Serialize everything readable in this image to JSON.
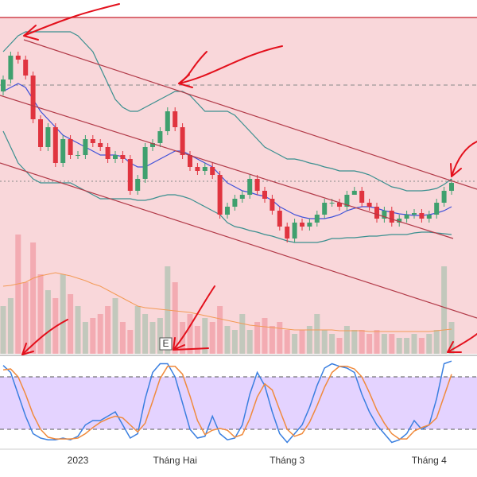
{
  "chart_data": [
    {
      "type": "candlestick",
      "categories": [
        null,
        null,
        null,
        null,
        null,
        null,
        null,
        null,
        null,
        null,
        "2023",
        null,
        null,
        null,
        null,
        null,
        null,
        null,
        null,
        null,
        null,
        null,
        null,
        "Tháng Hai",
        null,
        null,
        null,
        null,
        null,
        null,
        null,
        null,
        null,
        null,
        null,
        null,
        null,
        null,
        "Tháng 3",
        null,
        null,
        null,
        null,
        null,
        null,
        null,
        null,
        null,
        null,
        null,
        null,
        null,
        null,
        null,
        null,
        null,
        null,
        "Tháng 4",
        null,
        null,
        null
      ],
      "open": [
        33.0,
        34.5,
        37.5,
        37.0,
        35.0,
        29.5,
        26.0,
        28.5,
        24.0,
        27.0,
        25.0,
        25.0,
        27.0,
        26.5,
        26.0,
        24.5,
        25.0,
        24.5,
        20.5,
        22.0,
        26.0,
        26.5,
        28.0,
        30.5,
        28.5,
        25.0,
        23.5,
        23.0,
        23.5,
        22.5,
        17.5,
        18.5,
        19.5,
        20.0,
        22.0,
        20.5,
        19.5,
        18.0,
        16.0,
        14.5,
        16.5,
        16.0,
        16.5,
        17.5,
        19.0,
        19.0,
        18.5,
        20.0,
        20.5,
        19.0,
        18.5,
        17.0,
        18.0,
        16.5,
        17.0,
        17.5,
        17.7,
        17.0,
        17.5,
        19.0,
        20.5
      ],
      "high": [
        35.0,
        38.0,
        38.0,
        37.5,
        35.5,
        30.0,
        29.0,
        29.0,
        27.5,
        27.5,
        25.5,
        27.5,
        27.5,
        27.0,
        26.5,
        25.5,
        25.5,
        25.0,
        22.5,
        26.5,
        27.0,
        28.5,
        31.0,
        31.0,
        29.0,
        25.5,
        24.0,
        24.0,
        24.0,
        23.0,
        19.0,
        20.0,
        20.5,
        22.5,
        22.5,
        21.0,
        20.0,
        18.5,
        16.5,
        17.0,
        17.0,
        17.0,
        18.0,
        19.5,
        19.5,
        19.5,
        20.5,
        21.0,
        21.0,
        19.5,
        19.0,
        18.5,
        18.5,
        17.5,
        18.0,
        18.2,
        18.2,
        18.0,
        19.5,
        21.0,
        22.0
      ],
      "low": [
        32.5,
        34.0,
        36.5,
        34.5,
        29.0,
        25.5,
        25.5,
        23.5,
        23.5,
        24.5,
        24.5,
        24.5,
        26.0,
        25.5,
        24.0,
        24.0,
        24.0,
        20.0,
        20.0,
        21.5,
        25.5,
        26.0,
        27.5,
        28.0,
        24.5,
        23.0,
        22.5,
        22.5,
        22.0,
        17.0,
        17.0,
        18.0,
        19.0,
        19.5,
        20.0,
        19.0,
        17.5,
        15.5,
        14.0,
        14.0,
        15.5,
        15.5,
        16.0,
        17.0,
        18.5,
        18.0,
        18.0,
        20.0,
        18.5,
        18.0,
        16.5,
        16.5,
        16.0,
        16.0,
        16.5,
        17.0,
        16.5,
        16.5,
        17.0,
        18.5,
        20.0
      ],
      "close": [
        34.5,
        37.5,
        37.0,
        35.0,
        29.5,
        26.0,
        28.5,
        24.0,
        27.0,
        25.0,
        25.0,
        27.0,
        26.5,
        26.0,
        24.5,
        25.0,
        24.5,
        20.5,
        22.0,
        26.0,
        26.5,
        28.0,
        30.5,
        28.5,
        25.0,
        23.5,
        23.0,
        23.5,
        22.5,
        17.5,
        18.5,
        19.5,
        20.0,
        22.0,
        20.5,
        19.5,
        18.0,
        16.0,
        14.5,
        16.5,
        16.0,
        16.5,
        17.5,
        19.0,
        19.0,
        18.5,
        20.0,
        20.5,
        19.0,
        18.5,
        17.0,
        18.0,
        16.5,
        17.0,
        17.5,
        17.7,
        17.0,
        17.5,
        19.0,
        20.5,
        21.5
      ],
      "up_color": "#3fa06e",
      "down_color": "#e0343f",
      "ylim": [
        0,
        44.5
      ],
      "series": [
        {
          "color": "#3a8f8f",
          "values": [
            38,
            39,
            40,
            40.5,
            40.5,
            40.5,
            40.5,
            40.5,
            40.5,
            40.5,
            40,
            39,
            38,
            36,
            34,
            32,
            31,
            30.5,
            30.5,
            31,
            31.5,
            32,
            32.5,
            33,
            33,
            32.5,
            31.5,
            30.5,
            30.5,
            30.5,
            30.5,
            30,
            29,
            28,
            27,
            26,
            25.5,
            25,
            24.5,
            24.5,
            24.3,
            24,
            23.8,
            23.5,
            23.3,
            23,
            23,
            23,
            22.8,
            22.5,
            22,
            21.5,
            21,
            20.8,
            20.5,
            20.5,
            20.5,
            20.6,
            20.8,
            21.3,
            22
          ]
        },
        {
          "color": "#3a8f8f",
          "values": [
            28,
            26,
            24,
            23,
            22,
            21.5,
            21.5,
            21.5,
            21.5,
            21.5,
            21,
            20.5,
            20,
            19.5,
            19.5,
            19.5,
            19.5,
            19.5,
            19.3,
            19.3,
            19.5,
            19.8,
            20,
            20,
            19.8,
            19.5,
            19,
            18.5,
            18,
            17.5,
            16.5,
            16,
            15.8,
            15.5,
            15.3,
            15,
            14.8,
            14.5,
            14.2,
            14,
            14,
            14,
            14,
            14.2,
            14.5,
            14.5,
            14.6,
            14.6,
            14.7,
            14.8,
            14.8,
            14.9,
            15,
            15,
            15,
            15.2,
            15.3,
            15.3,
            15.2,
            15.1,
            15
          ]
        },
        {
          "color": "#3f51d9",
          "values": [
            33,
            33.5,
            34,
            33.5,
            32,
            30.5,
            29.5,
            28.5,
            27.5,
            27,
            26.5,
            26,
            25.5,
            25,
            25,
            25,
            24.8,
            24,
            23.5,
            23.5,
            24,
            24.5,
            25,
            25.5,
            25.5,
            25,
            24.5,
            24,
            23.5,
            22.5,
            21.5,
            21,
            20.5,
            20.3,
            20,
            19.8,
            19.3,
            18.5,
            18,
            17.5,
            17.2,
            17,
            17,
            17,
            17.2,
            17.5,
            18,
            18.3,
            18.5,
            18.5,
            18.3,
            18,
            17.8,
            17.6,
            17.5,
            17.4,
            17.4,
            17.5,
            17.7,
            18,
            18.5
          ]
        }
      ]
    },
    {
      "type": "bar",
      "values": [
        60,
        70,
        150,
        90,
        140,
        100,
        80,
        70,
        100,
        75,
        60,
        40,
        45,
        50,
        60,
        70,
        40,
        30,
        60,
        50,
        40,
        45,
        110,
        90,
        40,
        50,
        35,
        45,
        40,
        60,
        35,
        30,
        50,
        30,
        40,
        45,
        35,
        40,
        30,
        25,
        30,
        35,
        50,
        30,
        25,
        20,
        35,
        30,
        30,
        25,
        30,
        25,
        25,
        20,
        20,
        25,
        20,
        25,
        30,
        110,
        40
      ],
      "up_color": "#b8c6b6",
      "down_color": "#f2a3aa",
      "ylim": [
        0,
        160
      ],
      "series": [
        {
          "color": "#f39a55",
          "values": [
            85,
            86,
            88,
            90,
            95,
            98,
            100,
            102,
            100,
            98,
            95,
            92,
            88,
            85,
            80,
            75,
            70,
            65,
            60,
            58,
            57,
            56,
            55,
            54,
            53,
            52,
            50,
            48,
            46,
            44,
            42,
            40,
            38,
            36,
            35,
            34,
            33,
            32,
            31,
            30,
            30,
            30,
            30,
            30,
            30,
            29,
            29,
            29,
            29,
            28,
            28,
            28,
            28,
            28,
            28,
            28,
            28,
            28,
            29,
            30,
            31
          ]
        }
      ]
    },
    {
      "type": "line",
      "ylim": [
        0,
        100
      ],
      "levels": [
        20,
        80
      ],
      "band_color": "#e4d3ff",
      "series": [
        {
          "color": "#3a7fe0",
          "values": [
            93,
            85,
            60,
            35,
            15,
            10,
            8,
            8,
            10,
            8,
            12,
            25,
            30,
            30,
            35,
            40,
            25,
            10,
            15,
            55,
            85,
            95,
            95,
            80,
            50,
            20,
            10,
            12,
            35,
            15,
            8,
            10,
            25,
            60,
            85,
            70,
            40,
            15,
            5,
            15,
            25,
            45,
            70,
            90,
            95,
            92,
            90,
            85,
            60,
            40,
            25,
            15,
            5,
            8,
            15,
            30,
            20,
            25,
            55,
            95,
            98
          ]
        },
        {
          "color": "#f08a3c",
          "values": [
            88,
            89,
            80,
            60,
            37,
            20,
            11,
            9,
            9,
            9,
            10,
            15,
            22,
            28,
            32,
            35,
            33,
            25,
            17,
            27,
            52,
            78,
            92,
            92,
            83,
            58,
            30,
            14,
            19,
            21,
            19,
            11,
            14,
            32,
            57,
            72,
            65,
            42,
            20,
            12,
            15,
            28,
            47,
            68,
            85,
            92,
            92,
            89,
            80,
            62,
            42,
            27,
            15,
            9,
            9,
            18,
            22,
            25,
            33,
            58,
            83
          ]
        }
      ]
    }
  ],
  "marker": {
    "label": "E"
  }
}
